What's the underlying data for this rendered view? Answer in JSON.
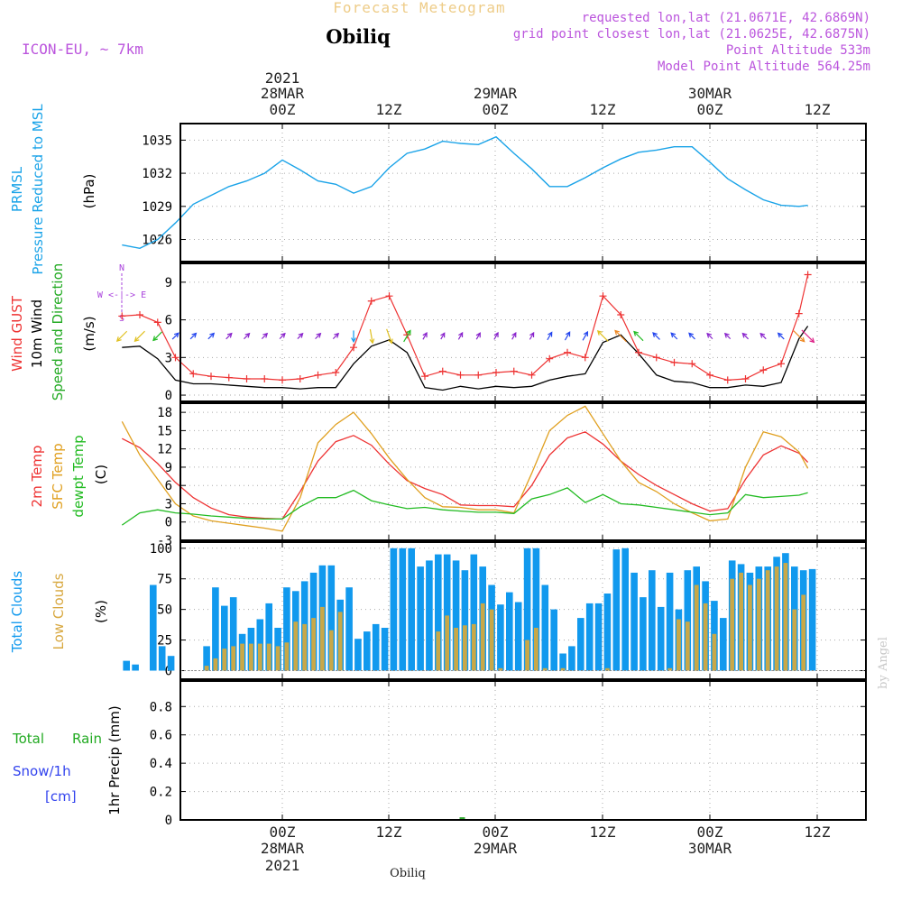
{
  "header": {
    "app_title": "Forecast Meteogram",
    "location": "Obiliq",
    "model": "ICON-EU, ~ 7km",
    "requested": "requested lon,lat (21.0671E, 42.6869N)",
    "grid_point": "grid point closest lon,lat (21.0625E, 42.6875N)",
    "point_alt": "Point Altitude 533m",
    "model_alt": "Model Point Altitude 564.25m"
  },
  "time_axis": {
    "top_ticks": [
      {
        "lines": [
          "2021",
          "28MAR",
          "00Z"
        ]
      },
      {
        "lines": [
          "12Z"
        ]
      },
      {
        "lines": [
          "29MAR",
          "00Z"
        ]
      },
      {
        "lines": [
          "12Z"
        ]
      },
      {
        "lines": [
          "30MAR",
          "00Z"
        ]
      },
      {
        "lines": [
          "12Z"
        ]
      }
    ],
    "bottom_ticks": [
      {
        "lines": [
          "00Z",
          "28MAR",
          "2021"
        ]
      },
      {
        "lines": [
          "12Z"
        ]
      },
      {
        "lines": [
          "00Z",
          "29MAR"
        ]
      },
      {
        "lines": [
          "12Z"
        ]
      },
      {
        "lines": [
          "00Z",
          "30MAR"
        ]
      },
      {
        "lines": [
          "12Z"
        ]
      }
    ],
    "footer_location": "Obiliq",
    "watermark": "by Angel"
  },
  "labels": {
    "p1": {
      "a": "PRMSL",
      "b": "Pressure Reduced to MSL",
      "unit": "(hPa)"
    },
    "p2": {
      "a": "Wind GUST",
      "b": "10m Wind",
      "c": "Speed and Direction",
      "unit": "(m/s)",
      "compass_n": "N",
      "compass_row": "W <-|-> E",
      "compass_s": "S"
    },
    "p3": {
      "a": "2m Temp",
      "b": "SFC Temp",
      "c": "dewpt Temp",
      "unit": "(C)"
    },
    "p4": {
      "a": "Total Clouds",
      "b": "Low Clouds",
      "unit": "(%)"
    },
    "p5": {
      "a": "Total",
      "b": "Rain",
      "c": "Snow/1h",
      "d": "[cm]",
      "unit": "1hr Precip (mm)"
    }
  },
  "colors": {
    "pressure": "#1aa3e8",
    "gust": "#ee3333",
    "wind": "#000000",
    "temp2m": "#ee3333",
    "sfc": "#e0a020",
    "dew": "#22bb22",
    "total_cloud": "#1199ee",
    "low_cloud": "#c8a848",
    "rain": "#33aa33",
    "snow": "#3344ee",
    "purple": "#aa44dd"
  },
  "chart_data": [
    {
      "type": "line",
      "title": "PRMSL Pressure Reduced to MSL",
      "ylabel": "hPa",
      "ylim": [
        1024,
        1036.5
      ],
      "yticks": [
        "1026",
        "1029",
        "1032",
        "1035"
      ],
      "x_hours": [
        -18,
        -16,
        -14,
        -12,
        -10,
        -8,
        -6,
        -4,
        -2,
        0,
        2,
        4,
        6,
        8,
        10,
        12,
        14,
        16,
        18,
        20,
        22,
        24,
        26,
        28,
        30,
        32,
        34,
        36,
        38,
        40,
        42,
        44,
        46,
        48,
        50,
        52,
        54,
        56,
        58,
        59
      ],
      "values": [
        1025.5,
        1025.2,
        1026.0,
        1027.5,
        1029.2,
        1030.0,
        1030.8,
        1031.3,
        1032.0,
        1033.2,
        1032.3,
        1031.3,
        1031.0,
        1030.2,
        1030.8,
        1032.5,
        1033.8,
        1034.2,
        1034.9,
        1034.7,
        1034.6,
        1035.3,
        1033.8,
        1032.4,
        1030.8,
        1030.8,
        1031.6,
        1032.5,
        1033.3,
        1033.9,
        1034.1,
        1034.4,
        1034.4,
        1033.0,
        1031.5,
        1030.5,
        1029.6,
        1029.1,
        1029.0,
        1029.1
      ]
    },
    {
      "type": "line",
      "title": "Wind GUST / 10m Wind Speed and Direction",
      "ylabel": "m/s",
      "ylim": [
        -0.5,
        10.5
      ],
      "yticks": [
        "0",
        "3",
        "6",
        "9"
      ],
      "x_hours": [
        -18,
        -16,
        -14,
        -12,
        -10,
        -8,
        -6,
        -4,
        -2,
        0,
        2,
        4,
        6,
        8,
        10,
        12,
        14,
        16,
        18,
        20,
        22,
        24,
        26,
        28,
        30,
        32,
        34,
        36,
        38,
        40,
        42,
        44,
        46,
        48,
        50,
        52,
        54,
        56,
        58,
        59
      ],
      "series": [
        {
          "name": "Wind GUST",
          "values": [
            6.3,
            6.4,
            5.8,
            3.0,
            1.7,
            1.5,
            1.4,
            1.3,
            1.3,
            1.2,
            1.3,
            1.6,
            1.8,
            3.8,
            7.5,
            7.9,
            4.8,
            1.5,
            1.9,
            1.6,
            1.6,
            1.8,
            1.9,
            1.6,
            2.9,
            3.4,
            3.0,
            7.9,
            6.4,
            3.4,
            3.0,
            2.6,
            2.5,
            1.6,
            1.2,
            1.3,
            2.0,
            2.5,
            6.5,
            9.6
          ]
        },
        {
          "name": "10m Wind",
          "values": [
            3.8,
            3.9,
            2.9,
            1.2,
            0.9,
            0.9,
            0.8,
            0.7,
            0.6,
            0.6,
            0.5,
            0.6,
            0.6,
            2.5,
            3.9,
            4.4,
            3.4,
            0.6,
            0.4,
            0.7,
            0.5,
            0.7,
            0.6,
            0.7,
            1.2,
            1.5,
            1.7,
            4.2,
            4.8,
            3.3,
            1.6,
            1.1,
            1.0,
            0.6,
            0.6,
            0.8,
            0.7,
            1.0,
            4.5,
            5.5
          ]
        }
      ],
      "wind_dir_deg": [
        225,
        225,
        225,
        45,
        45,
        45,
        45,
        45,
        45,
        45,
        45,
        45,
        45,
        180,
        170,
        160,
        30,
        30,
        30,
        30,
        30,
        30,
        30,
        30,
        30,
        30,
        30,
        315,
        315,
        315,
        315,
        315,
        315,
        315,
        315,
        315,
        315,
        315,
        135,
        135
      ]
    },
    {
      "type": "line",
      "title": "2m Temp / SFC Temp / dewpt Temp",
      "ylabel": "C",
      "ylim": [
        -3,
        19.5
      ],
      "yticks": [
        "-3",
        "0",
        "3",
        "6",
        "9",
        "12",
        "15",
        "18"
      ],
      "x_hours": [
        -18,
        -16,
        -14,
        -12,
        -10,
        -8,
        -6,
        -4,
        -2,
        0,
        2,
        4,
        6,
        8,
        10,
        12,
        14,
        16,
        18,
        20,
        22,
        24,
        26,
        28,
        30,
        32,
        34,
        36,
        38,
        40,
        42,
        44,
        46,
        48,
        50,
        52,
        54,
        56,
        58,
        59
      ],
      "series": [
        {
          "name": "2m Temp",
          "values": [
            13.7,
            12.2,
            9.6,
            6.5,
            4.0,
            2.3,
            1.2,
            0.8,
            0.6,
            0.5,
            5.0,
            10.0,
            13.2,
            14.2,
            12.6,
            9.5,
            6.8,
            5.5,
            4.5,
            2.8,
            2.7,
            2.7,
            2.5,
            6.0,
            11.0,
            13.8,
            14.8,
            12.8,
            10.0,
            7.8,
            6.0,
            4.5,
            3.0,
            1.8,
            2.2,
            7.0,
            11.0,
            12.5,
            11.3,
            9.8
          ]
        },
        {
          "name": "SFC Temp",
          "values": [
            16.5,
            11.0,
            7.0,
            3.0,
            1.0,
            0.2,
            -0.2,
            -0.6,
            -1.0,
            -1.5,
            4.0,
            13.0,
            16.0,
            18.0,
            14.5,
            10.5,
            7.0,
            4.0,
            2.5,
            2.4,
            2.0,
            2.0,
            1.5,
            8.0,
            15.0,
            17.5,
            19.0,
            14.5,
            10.0,
            6.5,
            5.0,
            3.0,
            1.5,
            0.2,
            0.5,
            9.0,
            14.8,
            14.0,
            11.5,
            8.8
          ]
        },
        {
          "name": "dewpt Temp",
          "values": [
            -0.5,
            1.5,
            2.0,
            1.5,
            1.3,
            1.0,
            0.8,
            0.6,
            0.5,
            0.5,
            2.5,
            4.0,
            4.0,
            5.2,
            3.5,
            2.8,
            2.2,
            2.4,
            2.0,
            1.8,
            1.6,
            1.6,
            1.4,
            3.8,
            4.5,
            5.6,
            3.2,
            4.5,
            3.0,
            2.8,
            2.4,
            2.0,
            1.6,
            1.2,
            1.5,
            4.5,
            4.0,
            4.2,
            4.4,
            4.8
          ]
        }
      ]
    },
    {
      "type": "bar",
      "title": "Total Clouds / Low Clouds",
      "ylabel": "%",
      "ylim": [
        -7,
        105
      ],
      "yticks": [
        "0",
        "25",
        "50",
        "75",
        "100"
      ],
      "x_hours": [
        -17.5,
        -16.5,
        -15.5,
        -14.5,
        -13.5,
        -12.5,
        -11.5,
        -10.5,
        -9.5,
        -8.5,
        -7.5,
        -6.5,
        -5.5,
        -4.5,
        -3.5,
        -2.5,
        -1.5,
        -0.5,
        0.5,
        1.5,
        2.5,
        3.5,
        4.5,
        5.5,
        6.5,
        7.5,
        8.5,
        9.5,
        10.5,
        11.5,
        12.5,
        13.5,
        14.5,
        15.5,
        16.5,
        17.5,
        18.5,
        19.5,
        20.5,
        21.5,
        22.5,
        23.5,
        24.5,
        25.5,
        26.5,
        27.5,
        28.5,
        29.5,
        30.5,
        31.5,
        32.5,
        33.5,
        34.5,
        35.5,
        36.5,
        37.5,
        38.5,
        39.5,
        40.5,
        41.5,
        42.5,
        43.5,
        44.5,
        45.5,
        46.5,
        47.5,
        48.5,
        49.5,
        50.5,
        51.5,
        52.5,
        53.5,
        54.5,
        55.5,
        56.5,
        57.5,
        58.5,
        59.5
      ],
      "series": [
        {
          "name": "Total Clouds",
          "values": [
            8,
            5,
            0,
            70,
            20,
            12,
            0,
            0,
            0,
            20,
            68,
            53,
            60,
            30,
            35,
            42,
            55,
            35,
            68,
            65,
            73,
            80,
            86,
            86,
            58,
            68,
            26,
            32,
            38,
            35,
            100,
            100,
            100,
            85,
            90,
            95,
            95,
            90,
            82,
            95,
            85,
            70,
            54,
            64,
            56,
            100,
            100,
            70,
            50,
            14,
            20,
            43,
            55,
            55,
            63,
            99,
            100,
            80,
            60,
            82,
            52,
            80,
            50,
            82,
            85,
            73,
            57,
            43,
            90,
            87,
            80,
            85,
            85,
            93,
            96,
            85,
            82,
            83
          ]
        },
        {
          "name": "Low Clouds",
          "values": [
            0,
            0,
            0,
            0,
            0,
            0,
            0,
            0,
            0,
            4,
            10,
            18,
            20,
            22,
            22,
            22,
            22,
            20,
            23,
            40,
            38,
            43,
            52,
            33,
            48,
            0,
            0,
            0,
            0,
            0,
            0,
            0,
            0,
            0,
            0,
            32,
            45,
            35,
            37,
            38,
            55,
            50,
            2,
            0,
            0,
            25,
            35,
            2,
            0,
            2,
            0,
            0,
            0,
            0,
            2,
            0,
            0,
            0,
            0,
            0,
            0,
            2,
            42,
            40,
            70,
            55,
            30,
            0,
            75,
            80,
            70,
            75,
            82,
            85,
            88,
            50,
            62,
            0
          ]
        }
      ]
    },
    {
      "type": "bar",
      "title": "1hr Precip (mm)",
      "ylabel": "mm",
      "ylim": [
        0,
        0.98
      ],
      "yticks": [
        "0",
        "0.2",
        "0.4",
        "0.6",
        "0.8"
      ],
      "x_hours": [
        20.2
      ],
      "series": [
        {
          "name": "Total Rain",
          "values": [
            0.015
          ]
        }
      ]
    }
  ]
}
